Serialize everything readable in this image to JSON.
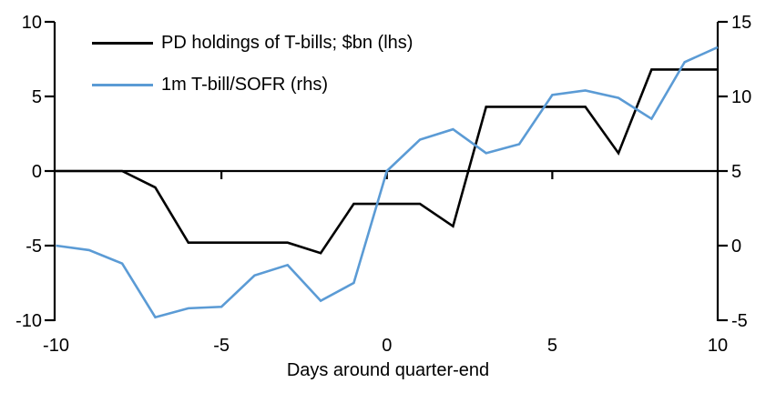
{
  "chart_data": {
    "type": "line",
    "title": "",
    "xlabel": "Days around quarter-end",
    "background": "#ffffff",
    "grid": false,
    "legend_position": "top-left",
    "x": [
      -10,
      -9,
      -8,
      -7,
      -6,
      -5,
      -4,
      -3,
      -2,
      -1,
      0,
      1,
      2,
      3,
      4,
      5,
      6,
      7,
      8,
      9,
      10
    ],
    "x_ticks": [
      -10,
      -5,
      0,
      5,
      10
    ],
    "left_axis": {
      "range": [
        -10,
        10
      ],
      "ticks": [
        10,
        5,
        0,
        -5,
        -10
      ]
    },
    "right_axis": {
      "range": [
        -5,
        15
      ],
      "ticks": [
        15,
        10,
        5,
        0,
        -5
      ]
    },
    "series": [
      {
        "name": "PD holdings of T-bills; $bn (lhs)",
        "axis": "left",
        "color": "#000000",
        "values": [
          0,
          0,
          0,
          -1.1,
          -4.8,
          -4.8,
          -4.8,
          -4.8,
          -5.5,
          -2.2,
          -2.2,
          -2.2,
          -3.7,
          4.3,
          4.3,
          4.3,
          4.3,
          1.2,
          6.8,
          6.8,
          6.8
        ]
      },
      {
        "name": "1m T-bill/SOFR (rhs)",
        "axis": "right",
        "color": "#5B9BD5",
        "values": [
          0.0,
          -0.3,
          -1.2,
          -4.8,
          -4.2,
          -4.1,
          -2.0,
          -1.3,
          -3.7,
          -2.5,
          5.0,
          7.1,
          7.8,
          6.2,
          6.8,
          10.1,
          10.4,
          9.9,
          8.5,
          12.3,
          13.3
        ]
      }
    ]
  }
}
